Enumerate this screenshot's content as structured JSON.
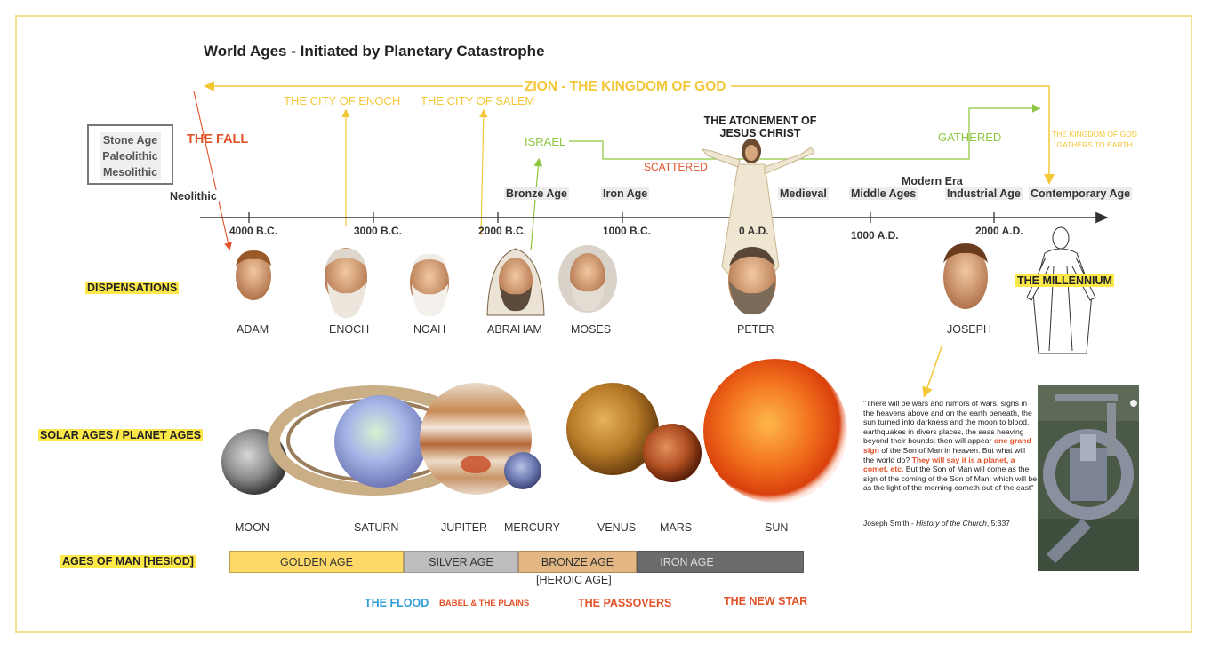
{
  "title": "World Ages - Initiated by Planetary Catastrophe",
  "zion": "ZION - THE KINGDOM OF GOD",
  "city_enoch": "THE CITY OF ENOCH",
  "city_salem": "THE CITY OF SALEM",
  "stone_box": [
    "Stone Age",
    "Paleolithic",
    "Mesolithic"
  ],
  "the_fall": "THE FALL",
  "israel": "ISRAEL",
  "scattered": "SCATTERED",
  "gathered": "GATHERED",
  "atonement": [
    "THE ATONEMENT OF",
    "JESUS CHRIST"
  ],
  "kingdom_gathers": [
    "THE KINGDOM OF GOD",
    "GATHERS TO EARTH"
  ],
  "modern_era": "Modern Era",
  "eras": {
    "neolithic": "Neolithic",
    "bronze": "Bronze Age",
    "iron": "Iron Age",
    "medieval": "Medieval",
    "middle": "Middle Ages",
    "industrial": "Industrial Age",
    "contemporary": "Contemporary Age"
  },
  "dates": {
    "d4000bc": "4000 B.C.",
    "d3000bc": "3000 B.C.",
    "d2000bc": "2000 B.C.",
    "d1000bc": "1000 B.C.",
    "d0ad": "0 A.D.",
    "d1000ad": "1000 A.D.",
    "d2000ad": "2000 A.D."
  },
  "rows": {
    "dispensations": "DISPENSATIONS",
    "solar": "SOLAR AGES / PLANET AGES",
    "hesiod": "AGES OF MAN [HESIOD]"
  },
  "millennium": "THE MILLENNIUM",
  "dispensations": {
    "adam": "ADAM",
    "enoch": "ENOCH",
    "noah": "NOAH",
    "abraham": "ABRAHAM",
    "moses": "MOSES",
    "peter": "PETER",
    "joseph": "JOSEPH"
  },
  "planets": {
    "moon": "MOON",
    "saturn": "SATURN",
    "jupiter": "JUPITER",
    "mercury": "MERCURY",
    "venus": "VENUS",
    "mars": "MARS",
    "sun": "SUN"
  },
  "ages": {
    "golden": "GOLDEN AGE",
    "silver": "SILVER AGE",
    "bronze": "BRONZE AGE",
    "iron": "IRON AGE",
    "heroic": "[HEROIC AGE]"
  },
  "events": {
    "flood": "THE FLOOD",
    "babel": "BABEL & THE PLAINS",
    "passovers": "THE PASSOVERS",
    "new_star": "THE NEW STAR"
  },
  "quote": {
    "p1": "\"There will be wars and rumors of wars, signs in the heavens above and on the earth beneath, the sun turned into darkness and the moon to blood, earthquakes in divers places, the seas heaving beyond their bounds; then will appear ",
    "h1": "one grand sign",
    "p2": " of the Son of Man in heaven. But what will the world do? ",
    "h2": "They will say it is a planet, a comet, etc.",
    "p3": " But the Son of Man will come as the sign of the coming of the Son of Man, which will be as the light of the morning cometh out of the east\"",
    "citation_author": "Joseph Smith - ",
    "citation_work": "History of the Church",
    "citation_ref": ", 5:337"
  },
  "colors": {
    "yellow": "#f3c738",
    "green": "#8dc63f",
    "red": "#e25229",
    "flood_blue": "#2f9ed8",
    "golden_bar": "#fcd969",
    "silver_bar": "#bdbdbd",
    "bronze_bar": "#e2b784",
    "iron_bar": "#6b6b6b",
    "highlight": "#fde84a"
  }
}
